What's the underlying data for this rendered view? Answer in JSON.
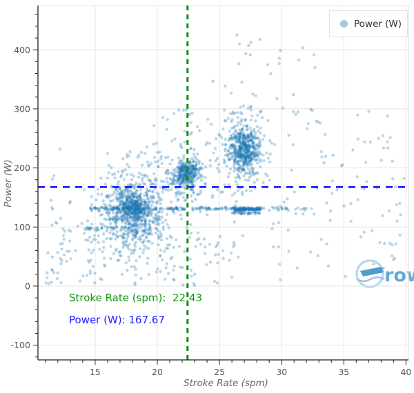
{
  "figure": {
    "legend": {
      "label": "Power (W)",
      "marker_color": "#a5c8e1"
    },
    "annotations": [
      {
        "id": "stroke-rate",
        "text": "Stroke Rate (spm):  22.43",
        "color": "#0d990d"
      },
      {
        "id": "power",
        "text": "Power (W): 167.67",
        "color": "#2020ff"
      }
    ],
    "watermark": {
      "text": "rows",
      "text_color": "#66abd8",
      "circle_color": "#b8d6ec",
      "boat_color": "#4f9dcf",
      "wave_color": "#9cc6e4"
    }
  },
  "chart_data": {
    "type": "scatter",
    "title": "",
    "xlabel": "Stroke Rate (spm)",
    "ylabel": "Power (W)",
    "series_name": "Power (W)",
    "x_range": [
      10.4,
      40.2
    ],
    "y_range": [
      -125,
      475
    ],
    "x_ticks": [
      15,
      20,
      25,
      30,
      35,
      40
    ],
    "y_ticks": [
      -100,
      0,
      100,
      200,
      300,
      400
    ],
    "x_minor_step": 1,
    "y_minor_step": 20,
    "grid": true,
    "legend_position": "top-right",
    "marker": {
      "color": "#1f77b4",
      "opacity": 0.3,
      "radius": 2.2
    },
    "crosshair": {
      "stroke_rate_spm": 22.43,
      "power_w": 167.67,
      "vline_color": "#0a8f0a",
      "hline_color": "#1515ff"
    },
    "distribution": {
      "seed": 20,
      "clusters": [
        {
          "name": "low-rate-main",
          "cx": 18.1,
          "cy": 122,
          "sx": 1.25,
          "sy": 32,
          "n": 620
        },
        {
          "name": "low-rate-core",
          "cx": 18.0,
          "cy": 132,
          "sx": 0.5,
          "sy": 11,
          "n": 240
        },
        {
          "name": "mid-rate-core",
          "cx": 22.35,
          "cy": 190,
          "sx": 0.5,
          "sy": 10,
          "n": 270
        },
        {
          "name": "mid-rate-halo",
          "cx": 22.2,
          "cy": 188,
          "sx": 1.0,
          "sy": 24,
          "n": 90
        },
        {
          "name": "high-rate-core",
          "cx": 27.0,
          "cy": 230,
          "sx": 0.6,
          "sy": 20,
          "n": 430
        },
        {
          "name": "high-rate-halo",
          "cx": 26.8,
          "cy": 236,
          "sx": 1.3,
          "sy": 40,
          "n": 150
        }
      ],
      "bands": [
        {
          "name": "steady-130w",
          "x0": 14.6,
          "x1": 28.6,
          "y": 131,
          "sy": 1.2,
          "n": 190
        },
        {
          "name": "steady-130w-dense",
          "x0": 26.2,
          "x1": 28.3,
          "y": 130,
          "sy": 1.2,
          "n": 110
        },
        {
          "name": "steady-124w",
          "x0": 25.8,
          "x1": 28.4,
          "y": 124,
          "sy": 1.0,
          "n": 35
        },
        {
          "name": "left-97w",
          "x0": 14.0,
          "x1": 16.5,
          "y": 97,
          "sy": 1.8,
          "n": 22
        },
        {
          "name": "right-131w",
          "x0": 28.6,
          "x1": 32.5,
          "y": 131,
          "sy": 1.5,
          "n": 22
        }
      ],
      "uniform_regions": [
        {
          "x0": 11.0,
          "x1": 16.0,
          "y0": 0,
          "y1": 150,
          "n": 60
        },
        {
          "x0": 14.0,
          "x1": 27.0,
          "y0": 0,
          "y1": 90,
          "n": 75
        },
        {
          "x0": 28.5,
          "x1": 40.0,
          "y0": 30,
          "y1": 300,
          "n": 85
        },
        {
          "x0": 29.5,
          "x1": 33.0,
          "y0": 290,
          "y1": 415,
          "n": 8
        },
        {
          "x0": 19.0,
          "x1": 26.0,
          "y0": 200,
          "y1": 300,
          "n": 45
        },
        {
          "x0": 16.0,
          "x1": 24.0,
          "y0": 150,
          "y1": 230,
          "n": 50
        },
        {
          "x0": 24.0,
          "x1": 30.0,
          "y0": 280,
          "y1": 430,
          "n": 25
        },
        {
          "x0": 11.5,
          "x1": 40.0,
          "y0": 0,
          "y1": 260,
          "n": 40
        },
        {
          "x0": 20.0,
          "x1": 24.5,
          "y0": 0,
          "y1": 160,
          "n": 40
        }
      ]
    }
  },
  "axes": {
    "tick_label_color": "#555555",
    "axis_title_color": "#666666"
  }
}
